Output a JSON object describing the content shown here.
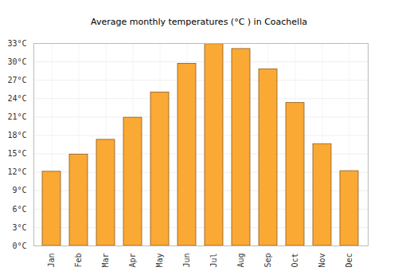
{
  "chart_data": {
    "type": "bar",
    "title": "Average monthly temperatures (°C ) in Coachella",
    "categories": [
      "Jan",
      "Feb",
      "Mar",
      "Apr",
      "May",
      "Jun",
      "Jul",
      "Aug",
      "Sep",
      "Oct",
      "Nov",
      "Dec"
    ],
    "values": [
      12.1,
      14.9,
      17.3,
      20.9,
      25.0,
      29.7,
      32.9,
      32.1,
      28.8,
      23.3,
      16.6,
      12.2
    ],
    "color": "#fba935",
    "ylim": [
      0,
      33
    ],
    "yticks": [
      {
        "value": 0,
        "label": "0°C"
      },
      {
        "value": 3,
        "label": "3°C"
      },
      {
        "value": 6,
        "label": "6°C"
      },
      {
        "value": 9,
        "label": "9°C"
      },
      {
        "value": 12,
        "label": "12°C"
      },
      {
        "value": 15,
        "label": "15°C"
      },
      {
        "value": 18,
        "label": "18°C"
      },
      {
        "value": 21,
        "label": "21°C"
      },
      {
        "value": 24,
        "label": "24°C"
      },
      {
        "value": 27,
        "label": "27°C"
      },
      {
        "value": 30,
        "label": "30°C"
      },
      {
        "value": 33,
        "label": "33°C"
      }
    ],
    "grid": true
  }
}
